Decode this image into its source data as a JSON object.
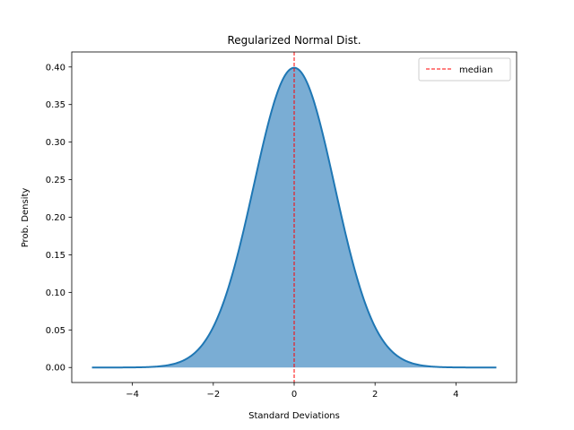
{
  "chart_data": {
    "type": "area",
    "title": "Regularized Normal Dist.",
    "xlabel": "Standard Deviations",
    "ylabel": "Prob. Density",
    "xlim": [
      -5.5,
      5.5
    ],
    "ylim": [
      -0.02,
      0.42
    ],
    "xticks": [
      -4,
      -2,
      0,
      2,
      4
    ],
    "xtick_labels": [
      "−4",
      "−2",
      "0",
      "2",
      "4"
    ],
    "yticks": [
      0.0,
      0.05,
      0.1,
      0.15,
      0.2,
      0.25,
      0.3,
      0.35,
      0.4
    ],
    "ytick_labels": [
      "0.00",
      "0.05",
      "0.10",
      "0.15",
      "0.20",
      "0.25",
      "0.30",
      "0.35",
      "0.40"
    ],
    "grid": false,
    "legend_position": "top-right",
    "series": [
      {
        "kind": "area-line",
        "x": [
          -5.0,
          -4.5,
          -4.0,
          -3.5,
          -3.0,
          -2.75,
          -2.5,
          -2.25,
          -2.0,
          -1.75,
          -1.5,
          -1.25,
          -1.0,
          -0.75,
          -0.5,
          -0.25,
          0.0,
          0.25,
          0.5,
          0.75,
          1.0,
          1.25,
          1.5,
          1.75,
          2.0,
          2.25,
          2.5,
          2.75,
          3.0,
          3.5,
          4.0,
          4.5,
          5.0
        ],
        "y": [
          0.0,
          0.0,
          0.0001,
          0.0009,
          0.0044,
          0.0091,
          0.0175,
          0.0317,
          0.054,
          0.0863,
          0.1295,
          0.1826,
          0.242,
          0.3011,
          0.3521,
          0.3867,
          0.3989,
          0.3867,
          0.3521,
          0.3011,
          0.242,
          0.1826,
          0.1295,
          0.0863,
          0.054,
          0.0317,
          0.0175,
          0.0091,
          0.0044,
          0.0009,
          0.0001,
          0.0,
          0.0
        ],
        "line_color": "#1f77b4",
        "fill_color": "#7aadd4"
      },
      {
        "kind": "vline",
        "name": "median",
        "x": 0,
        "color": "#ff0000",
        "style": "dashed"
      }
    ],
    "legend": [
      {
        "label": "median",
        "color": "#ff0000",
        "style": "dashed"
      }
    ]
  }
}
